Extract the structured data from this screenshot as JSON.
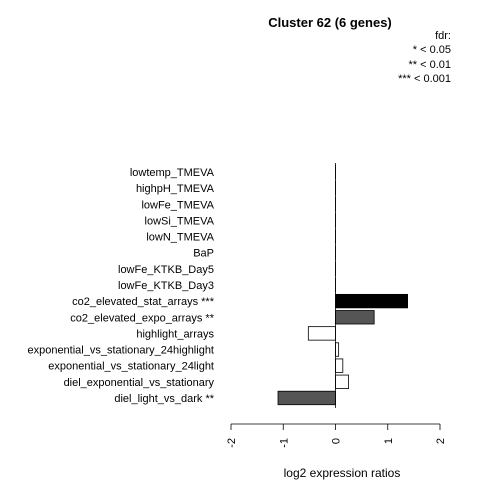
{
  "chart_data": {
    "type": "bar",
    "orientation": "horizontal",
    "title": "Cluster 62 (6 genes)",
    "xlabel": "log2 expression ratios",
    "xlim": [
      -2,
      2
    ],
    "xticks": [
      "-2",
      "-1",
      "0",
      "1",
      "2"
    ],
    "legend": {
      "title": "fdr:",
      "entries": [
        "* < 0.05",
        "** < 0.01",
        "*** < 0.001"
      ]
    },
    "categories": [
      "lowtemp_TMEVA",
      "highpH_TMEVA",
      "lowFe_TMEVA",
      "lowSi_TMEVA",
      "lowN_TMEVA",
      "BaP",
      "lowFe_KTKB_Day5",
      "lowFe_KTKB_Day3",
      "co2_elevated_stat_arrays ***",
      "co2_elevated_expo_arrays **",
      "highlight_arrays",
      "exponential_vs_stationary_24highlight",
      "exponential_vs_stationary_24light",
      "diel_exponential_vs_stationary",
      "diel_light_vs_dark **"
    ],
    "values": [
      0,
      0,
      0,
      0,
      0,
      0,
      0,
      0,
      1.38,
      0.74,
      -0.52,
      0.06,
      0.14,
      0.25,
      -1.1
    ],
    "bar_colors": [
      "#ffffff",
      "#ffffff",
      "#ffffff",
      "#ffffff",
      "#ffffff",
      "#ffffff",
      "#ffffff",
      "#ffffff",
      "#000000",
      "#555555",
      "#ffffff",
      "#ffffff",
      "#ffffff",
      "#ffffff",
      "#555555"
    ]
  }
}
